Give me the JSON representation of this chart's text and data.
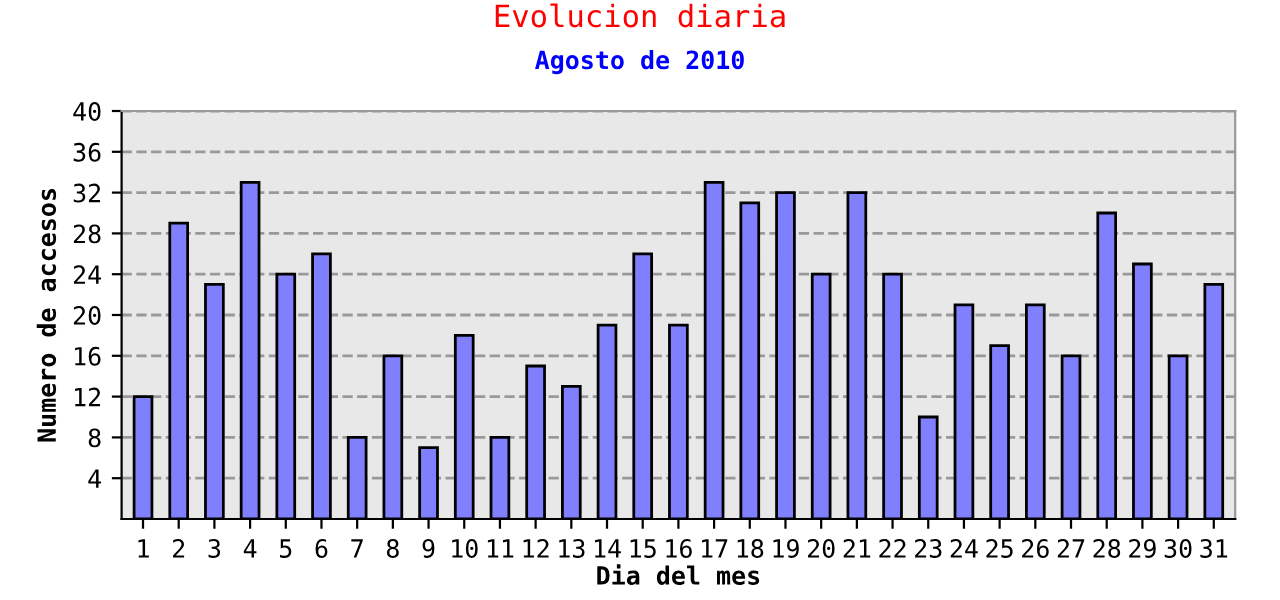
{
  "chart_data": {
    "type": "bar",
    "title": "Evolucion diaria",
    "subtitle": "Agosto de 2010",
    "xlabel": "Dia del mes",
    "ylabel": "Numero de accesos",
    "categories": [
      "1",
      "2",
      "3",
      "4",
      "5",
      "6",
      "7",
      "8",
      "9",
      "10",
      "11",
      "12",
      "13",
      "14",
      "15",
      "16",
      "17",
      "18",
      "19",
      "20",
      "21",
      "22",
      "23",
      "24",
      "25",
      "26",
      "27",
      "28",
      "29",
      "30",
      "31"
    ],
    "series": [
      {
        "color": "#8080ff",
        "values": [
          12,
          29,
          23,
          33,
          24,
          26,
          8,
          16,
          7,
          18,
          8,
          15,
          13,
          19,
          26,
          19,
          33,
          31,
          32,
          24,
          32,
          24,
          10,
          21,
          17,
          21,
          16,
          30,
          25,
          16,
          23
        ]
      }
    ],
    "ylim": [
      0,
      40
    ],
    "yticks": [
      4,
      8,
      12,
      16,
      20,
      24,
      28,
      32,
      36,
      40
    ],
    "grid": "y",
    "legend": false
  }
}
